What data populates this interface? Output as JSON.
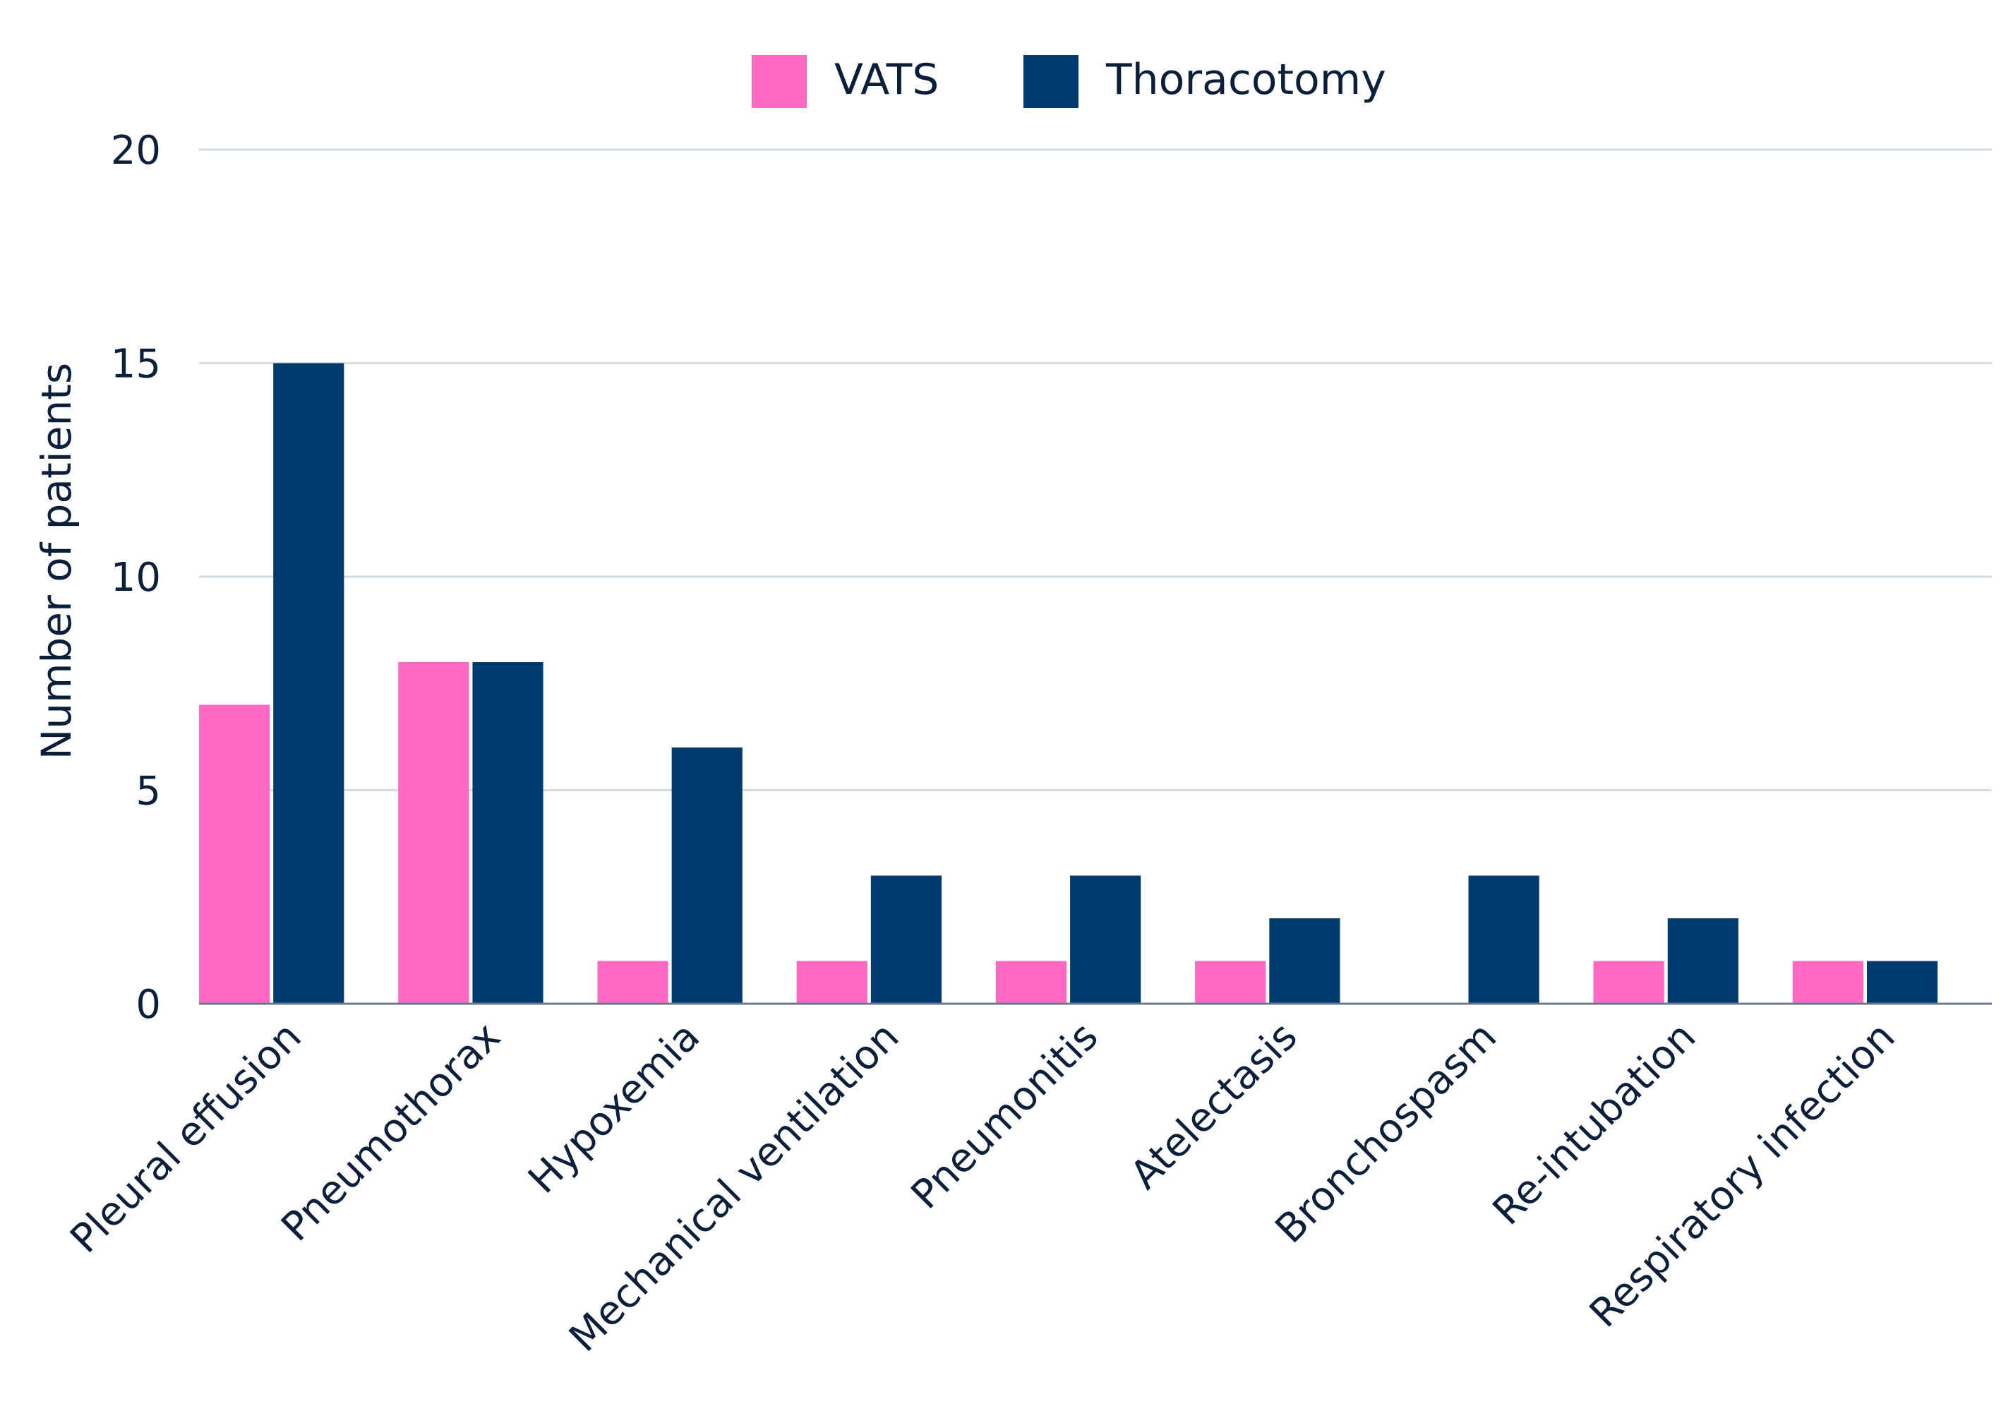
{
  "chart_data": {
    "type": "bar",
    "title": "",
    "xlabel": "",
    "ylabel": "Number of patients",
    "ylim": [
      0,
      20
    ],
    "yticks": [
      0,
      5,
      10,
      15,
      20
    ],
    "grid": true,
    "legend_position": "top-center",
    "categories": [
      "Pleural effusion",
      "Pneumothorax",
      "Hypoxemia",
      "Mechanical ventilation",
      "Pneumonitis",
      "Atelectasis",
      "Bronchospasm",
      "Re-intubation",
      "Respiratory infection"
    ],
    "series": [
      {
        "name": "VATS",
        "color": "#ff69c4",
        "values": [
          7,
          8,
          1,
          1,
          1,
          1,
          0,
          1,
          1
        ]
      },
      {
        "name": "Thoracotomy",
        "color": "#003b6f",
        "values": [
          15,
          8,
          6,
          3,
          3,
          2,
          3,
          2,
          1
        ]
      }
    ]
  }
}
